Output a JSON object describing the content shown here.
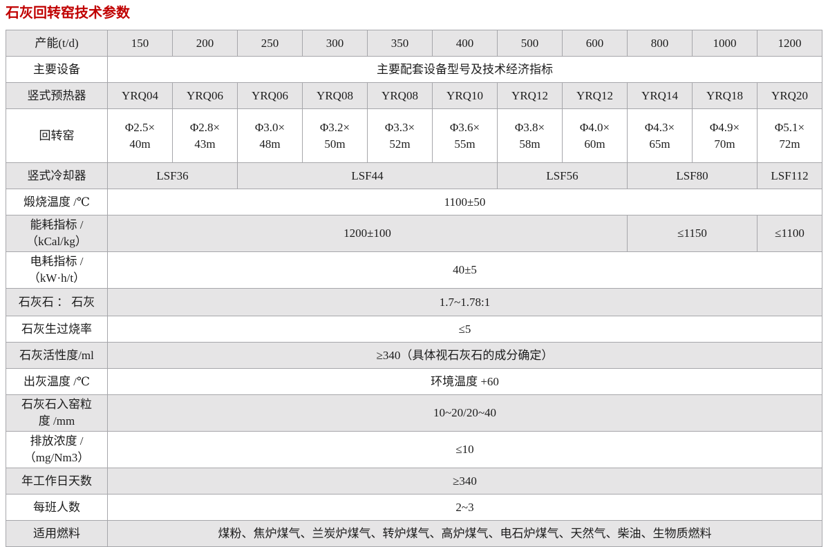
{
  "title": "石灰回转窑技术参数",
  "colors": {
    "title_red": "#c00000",
    "row_shade": "#e6e5e6",
    "border_gray": "#a6a6aa"
  },
  "table": {
    "rows": [
      {
        "name": "capacity",
        "cells": [
          {
            "text": "产能(t/d)"
          },
          {
            "text": "150"
          },
          {
            "text": "200"
          },
          {
            "text": "250"
          },
          {
            "text": "300"
          },
          {
            "text": "350"
          },
          {
            "text": "400"
          },
          {
            "text": "500"
          },
          {
            "text": "600"
          },
          {
            "text": "800"
          },
          {
            "text": "1000"
          },
          {
            "text": "1200"
          }
        ]
      },
      {
        "name": "main-equipment",
        "cells": [
          {
            "text": "主要设备"
          },
          {
            "text": "主要配套设备型号及技术经济指标",
            "colspan": 11
          }
        ]
      },
      {
        "name": "vertical-preheater",
        "cells": [
          {
            "text": "竖式预热器"
          },
          {
            "text": "YRQ04"
          },
          {
            "text": "YRQ06"
          },
          {
            "text": "YRQ06"
          },
          {
            "text": "YRQ08"
          },
          {
            "text": "YRQ08"
          },
          {
            "text": "YRQ10"
          },
          {
            "text": "YRQ12"
          },
          {
            "text": "YRQ12"
          },
          {
            "text": "YRQ14"
          },
          {
            "text": "YRQ18"
          },
          {
            "text": "YRQ20"
          }
        ]
      },
      {
        "name": "rotary-kiln",
        "cells": [
          {
            "text": "回转窑"
          },
          {
            "lines": [
              "Φ2.5×",
              "40m"
            ]
          },
          {
            "lines": [
              "Φ2.8×",
              "43m"
            ]
          },
          {
            "lines": [
              "Φ3.0×",
              "48m"
            ]
          },
          {
            "lines": [
              "Φ3.2×",
              "50m"
            ]
          },
          {
            "lines": [
              "Φ3.3×",
              "52m"
            ]
          },
          {
            "lines": [
              "Φ3.6×",
              "55m"
            ]
          },
          {
            "lines": [
              "Φ3.8×",
              "58m"
            ]
          },
          {
            "lines": [
              "Φ4.0×",
              "60m"
            ]
          },
          {
            "lines": [
              "Φ4.3×",
              "65m"
            ]
          },
          {
            "lines": [
              "Φ4.9×",
              "70m"
            ]
          },
          {
            "lines": [
              "Φ5.1×",
              "72m"
            ]
          }
        ]
      },
      {
        "name": "vertical-cooler",
        "cells": [
          {
            "text": "竖式冷却器"
          },
          {
            "text": "LSF36",
            "colspan": 2
          },
          {
            "text": "LSF44",
            "colspan": 4
          },
          {
            "text": "LSF56",
            "colspan": 2
          },
          {
            "text": "LSF80",
            "colspan": 2
          },
          {
            "text": "LSF112"
          }
        ]
      },
      {
        "name": "calcining-temperature",
        "cells": [
          {
            "text": "煅烧温度 /℃"
          },
          {
            "text": "1100±50",
            "colspan": 11
          }
        ]
      },
      {
        "name": "energy-consumption",
        "cells": [
          {
            "lines": [
              "能耗指标 /",
              "（kCal/kg）"
            ]
          },
          {
            "text": "1200±100",
            "colspan": 8
          },
          {
            "text": "≤1150",
            "colspan": 2
          },
          {
            "text": "≤1100"
          }
        ]
      },
      {
        "name": "power-consumption",
        "cells": [
          {
            "lines": [
              "电耗指标 /",
              "（kW·h/t）"
            ]
          },
          {
            "text": "40±5",
            "colspan": 11
          }
        ]
      },
      {
        "name": "limestone-lime-ratio",
        "cells": [
          {
            "text": "石灰石 ： 石灰"
          },
          {
            "text": "1.7~1.78:1",
            "colspan": 11
          }
        ]
      },
      {
        "name": "underburnt-overburnt-rate",
        "cells": [
          {
            "text": "石灰生过烧率"
          },
          {
            "text": "≤5",
            "colspan": 11
          }
        ]
      },
      {
        "name": "lime-activity",
        "cells": [
          {
            "text": "石灰活性度/ml"
          },
          {
            "text": "≥340（具体视石灰石的成分确定）",
            "colspan": 11
          }
        ]
      },
      {
        "name": "discharge-temperature",
        "cells": [
          {
            "text": "出灰温度 /℃"
          },
          {
            "text": "环境温度 +60",
            "colspan": 11
          }
        ]
      },
      {
        "name": "feed-particle-size",
        "cells": [
          {
            "lines": [
              "石灰石入窑粒",
              "度 /mm"
            ]
          },
          {
            "text": "10~20/20~40",
            "colspan": 11
          }
        ]
      },
      {
        "name": "emission-concentration",
        "cells": [
          {
            "lines": [
              "排放浓度 /",
              "（mg/Nm3）"
            ]
          },
          {
            "text": "≤10",
            "colspan": 11
          }
        ]
      },
      {
        "name": "annual-working-days",
        "cells": [
          {
            "text": "年工作日天数"
          },
          {
            "text": "≥340",
            "colspan": 11
          }
        ]
      },
      {
        "name": "staff-per-shift",
        "cells": [
          {
            "text": "每班人数"
          },
          {
            "text": "2~3",
            "colspan": 11
          }
        ]
      },
      {
        "name": "applicable-fuels",
        "cells": [
          {
            "text": "适用燃料"
          },
          {
            "text": "煤粉、焦炉煤气、兰炭炉煤气、转炉煤气、高炉煤气、电石炉煤气、天然气、柴油、生物质燃料",
            "colspan": 11
          }
        ]
      }
    ]
  }
}
